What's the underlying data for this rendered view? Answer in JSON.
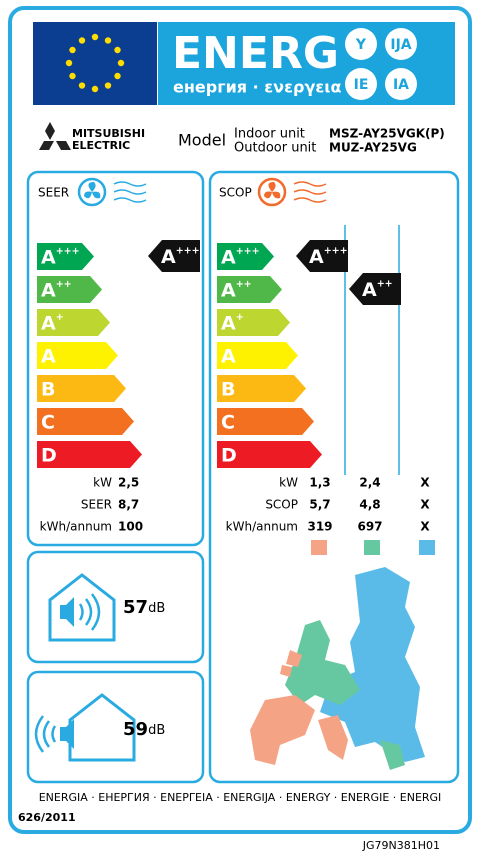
{
  "header": {
    "title": "ENERG",
    "subtitle": "енергия · ενεργεια",
    "badges": [
      "Y",
      "IJA",
      "IE",
      "IA"
    ]
  },
  "brand": {
    "line1": "MITSUBISHI",
    "line2": "ELECTRIC"
  },
  "model": {
    "label": "Model",
    "indoor_label": "Indoor unit",
    "outdoor_label": "Outdoor unit",
    "indoor": "MSZ-AY25VGK(P)",
    "outdoor": "MUZ-AY25VG"
  },
  "classes": [
    {
      "letter": "A",
      "sup": "+++"
    },
    {
      "letter": "A",
      "sup": "++"
    },
    {
      "letter": "A",
      "sup": "+"
    },
    {
      "letter": "A"
    },
    {
      "letter": "B"
    },
    {
      "letter": "C"
    },
    {
      "letter": "D"
    }
  ],
  "seer": {
    "label": "SEER",
    "rating": {
      "letter": "A",
      "sup": "+++"
    },
    "rows": [
      {
        "label": "kW",
        "value": "2,5"
      },
      {
        "label": "SEER",
        "value": "8,7"
      },
      {
        "label": "kWh/annum",
        "value": "100"
      }
    ]
  },
  "scop": {
    "label": "SCOP",
    "ratings": [
      {
        "letter": "A",
        "sup": "+++"
      },
      {
        "letter": "A",
        "sup": "++"
      }
    ],
    "rows": [
      {
        "label": "kW",
        "values": [
          "1,3",
          "2,4",
          "X"
        ]
      },
      {
        "label": "SCOP",
        "values": [
          "5,7",
          "4,8",
          "X"
        ]
      },
      {
        "label": "kWh/annum",
        "values": [
          "319",
          "697",
          "X"
        ]
      }
    ]
  },
  "noise": {
    "indoor": "57",
    "outdoor": "59",
    "unit": "dB"
  },
  "footer": {
    "languages": "ENERGIA · ЕНЕРГИЯ · ΕΝΕΡΓΕΙΑ · ENERGIJA · ENERGY · ENERGIE · ENERGI",
    "regulation": "626/2011",
    "code": "JG79N381H01"
  }
}
